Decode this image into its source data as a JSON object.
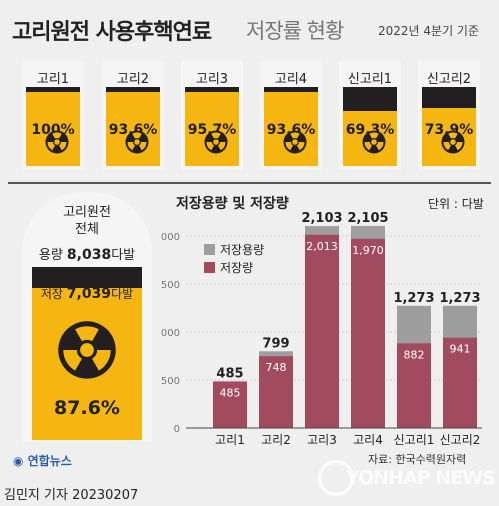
{
  "header": {
    "title_main": "고리원전 사용후핵연료",
    "title_sub": "저장률 현황",
    "period": "2022년 4분기 기준"
  },
  "units": [
    {
      "name": "고리1",
      "rate": 100,
      "rate_label": "100%"
    },
    {
      "name": "고리2",
      "rate": 93.6,
      "rate_label": "93.6%"
    },
    {
      "name": "고리3",
      "rate": 95.7,
      "rate_label": "95.7%"
    },
    {
      "name": "고리4",
      "rate": 93.6,
      "rate_label": "93.6%"
    },
    {
      "name": "신고리1",
      "rate": 69.3,
      "rate_label": "69.3%"
    },
    {
      "name": "신고리2",
      "rate": 73.9,
      "rate_label": "73.9%"
    }
  ],
  "total": {
    "label_line1": "고리원전",
    "label_line2": "전체",
    "capacity_prefix": "용량",
    "capacity_value": "8,038",
    "capacity_unit": "다발",
    "storage_prefix": "저장",
    "storage_value": "7,039",
    "storage_unit": "다발",
    "rate": 87.6,
    "rate_label": "87.6%"
  },
  "chart_data": {
    "type": "bar",
    "title": "저장용량 및 저장량",
    "unit_label": "단위 : 다발",
    "categories": [
      "고리1",
      "고리2",
      "고리3",
      "고리4",
      "신고리1",
      "신고리2"
    ],
    "series": [
      {
        "name": "저장용량",
        "values": [
          485,
          799,
          2103,
          2105,
          1273,
          1273
        ],
        "labels": [
          "485",
          "799",
          "2,103",
          "2,105",
          "1,273",
          "1,273"
        ],
        "color": "#9e9e9e"
      },
      {
        "name": "저장량",
        "values": [
          485,
          748,
          2013,
          1970,
          882,
          941
        ],
        "labels": [
          "485",
          "748",
          "2,013",
          "1,970",
          "882",
          "941"
        ],
        "color": "#a24b5e"
      }
    ],
    "ylim": [
      0,
      2000
    ],
    "yticks": [
      0,
      500,
      1000,
      1500,
      2000
    ],
    "ytick_labels": [
      "0",
      "500",
      "1,000",
      "1,500",
      "2,000"
    ],
    "grid": true,
    "legend_position": "top-left"
  },
  "footer": {
    "source": "자료: 한국수력원자력",
    "logo": "연합뉴스",
    "credit": "김민지 기자  20230207",
    "watermark": "YONHAP NEWS"
  },
  "colors": {
    "fill": "#f6b612",
    "empty": "#231f20",
    "capacity": "#9e9e9e",
    "storage": "#a24b5e"
  },
  "icons": {
    "unit": "radiation-icon"
  }
}
